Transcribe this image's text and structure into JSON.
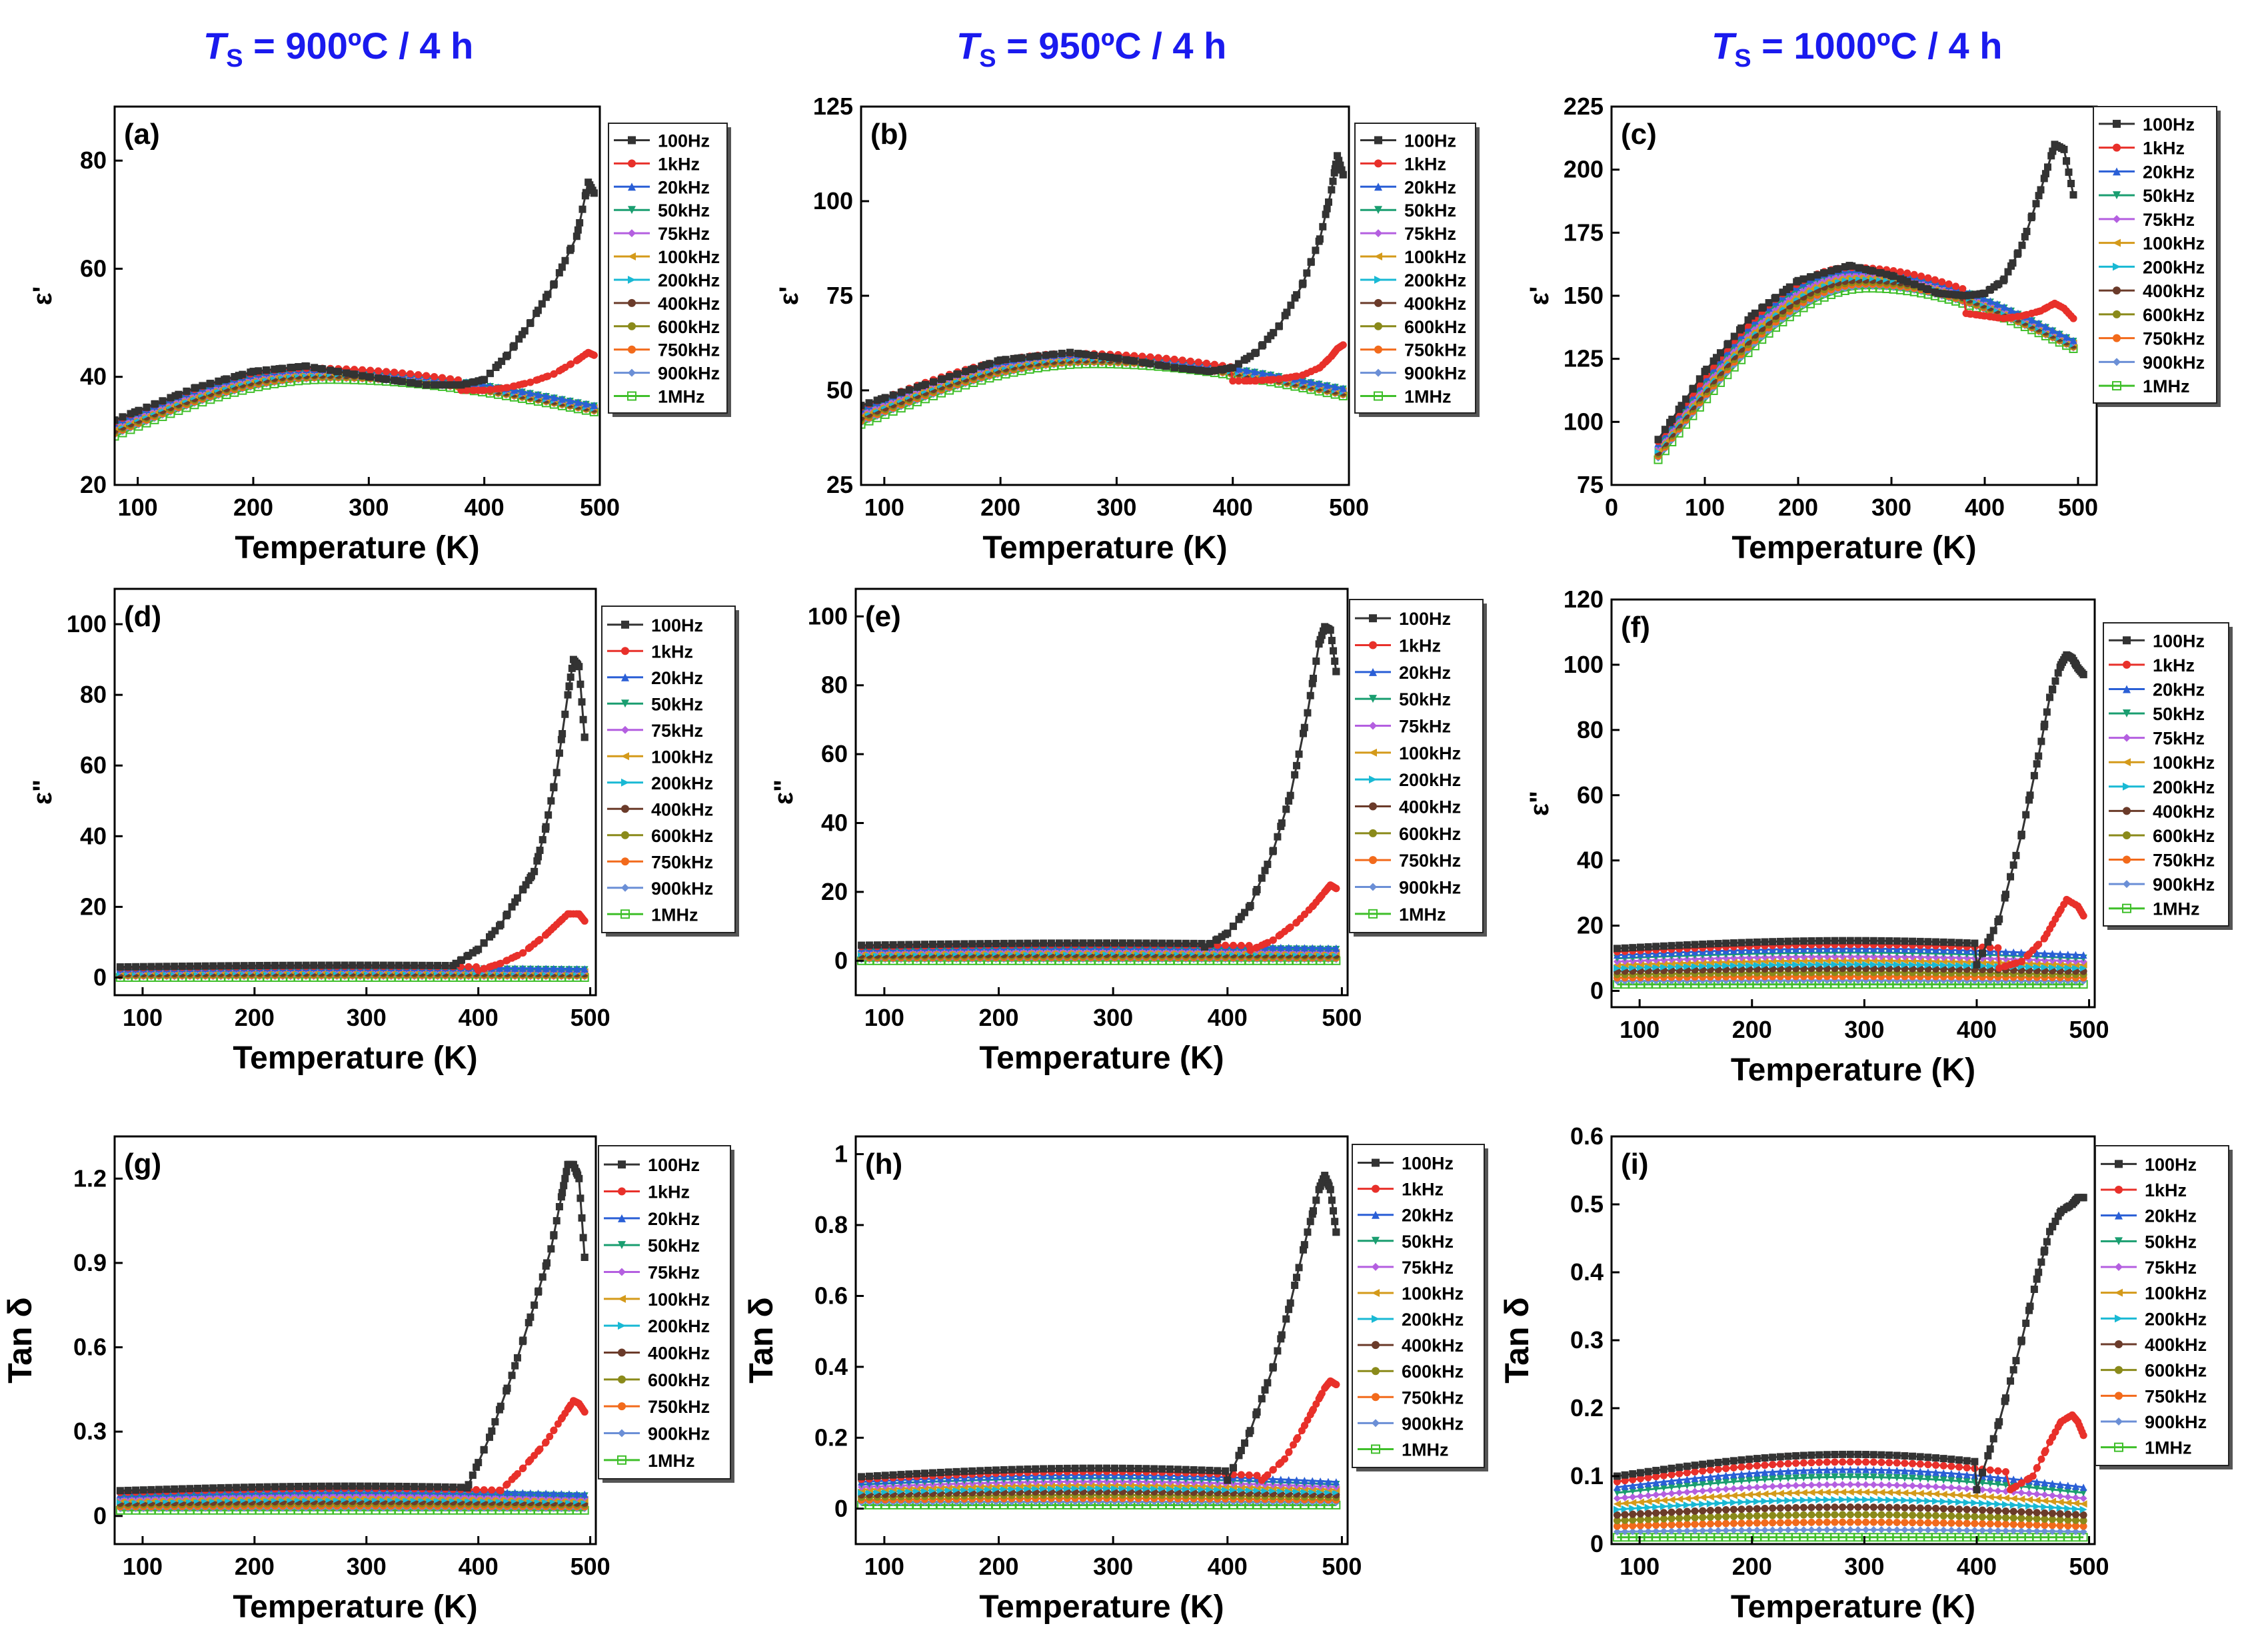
{
  "figure": {
    "columns": [
      {
        "prefix": "T",
        "sub": "S",
        "suffix": " = 900ºC / 4 h"
      },
      {
        "prefix": "T",
        "sub": "S",
        "suffix": " = 950ºC / 4 h"
      },
      {
        "prefix": "T",
        "sub": "S",
        "suffix": " = 1000ºC / 4 h"
      }
    ],
    "title_color": "#1a1aee"
  },
  "legend_labels": [
    "100Hz",
    "1kHz",
    "20kHz",
    "50kHz",
    "75kHz",
    "100kHz",
    "200kHz",
    "400kHz",
    "600kHz",
    "750kHz",
    "900kHz",
    "1MHz"
  ],
  "series_colors": [
    "#333333",
    "#e8302a",
    "#2a5fd6",
    "#1a9e70",
    "#b45fe0",
    "#d49a1a",
    "#19b9d4",
    "#6b3b2a",
    "#8a8a1a",
    "#f26a1b",
    "#6b8fd6",
    "#3fbf2a"
  ],
  "series_markers": [
    "square",
    "circle",
    "triangle",
    "tri-down",
    "diamond",
    "tri-left",
    "tri-right",
    "hexagon",
    "star",
    "pentagon",
    "diamond",
    "square-open"
  ],
  "chart_data": [
    {
      "id": "a",
      "label": "(a)",
      "type": "line",
      "xlabel": "Temperature (K)",
      "ylabel": "ε'",
      "xlim": [
        80,
        500
      ],
      "ylim": [
        20,
        90
      ],
      "xticks": [
        100,
        200,
        300,
        400,
        500
      ],
      "yticks": [
        20,
        40,
        60,
        80
      ],
      "peak": {
        "x": 245,
        "y_top": 41.8,
        "y_bot": 39.5
      },
      "xmin": 80,
      "xmax": 495,
      "start_top": 32,
      "start_bot": 29,
      "end_hi": 35,
      "end_lo": 33.5,
      "s0": {
        "x": [
          80,
          150,
          200,
          245,
          300,
          350,
          380,
          400,
          420,
          440,
          460,
          480,
          490,
          495
        ],
        "y": [
          32,
          38,
          41,
          42,
          40,
          38.5,
          38.5,
          39.5,
          44,
          50,
          57,
          66,
          76,
          74
        ]
      },
      "s1": {
        "x": [
          380,
          400,
          420,
          440,
          460,
          480,
          490,
          495
        ],
        "y": [
          37.5,
          37.5,
          38,
          39,
          40.5,
          43,
          44.5,
          44
        ]
      }
    },
    {
      "id": "b",
      "label": "(b)",
      "type": "line",
      "xlabel": "Temperature (K)",
      "ylabel": "ε'",
      "xlim": [
        80,
        500
      ],
      "ylim": [
        25,
        125
      ],
      "xticks": [
        100,
        200,
        300,
        400,
        500
      ],
      "yticks": [
        25,
        50,
        75,
        100,
        125
      ],
      "peak": {
        "x": 260,
        "y_top": 60,
        "y_bot": 57
      },
      "xmin": 80,
      "xmax": 495,
      "start_top": 46,
      "start_bot": 41,
      "end_hi": 51,
      "end_lo": 48.5,
      "s0": {
        "x": [
          80,
          150,
          200,
          260,
          300,
          350,
          380,
          400,
          420,
          440,
          460,
          475,
          485,
          490,
          495
        ],
        "y": [
          46,
          53,
          58,
          60,
          58.5,
          56,
          55,
          56,
          60,
          67,
          78,
          90,
          103,
          112,
          107
        ]
      },
      "s1": {
        "x": [
          400,
          420,
          440,
          460,
          475,
          485,
          490,
          495
        ],
        "y": [
          52.5,
          52.5,
          53,
          54,
          56,
          59,
          61,
          62
        ]
      }
    },
    {
      "id": "c",
      "label": "(c)",
      "type": "line",
      "xlabel": "Temperature (K)",
      "ylabel": "ε'",
      "xlim": [
        0,
        520
      ],
      "ylim": [
        75,
        225
      ],
      "xticks": [
        0,
        100,
        200,
        300,
        400,
        500
      ],
      "yticks": [
        75,
        100,
        125,
        150,
        175,
        200,
        225
      ],
      "peak": {
        "x": 255,
        "y_top": 162,
        "y_bot": 153
      },
      "xmin": 50,
      "xmax": 495,
      "start_top": 93,
      "start_bot": 85,
      "end_hi": 133,
      "end_lo": 129,
      "s0": {
        "x": [
          50,
          100,
          150,
          200,
          255,
          300,
          350,
          380,
          400,
          420,
          440,
          460,
          475,
          485,
          495
        ],
        "y": [
          93,
          120,
          142,
          156,
          162,
          158,
          151,
          150,
          151,
          156,
          170,
          192,
          210,
          208,
          190
        ]
      },
      "s1": {
        "x": [
          380,
          400,
          420,
          440,
          460,
          475,
          485,
          495
        ],
        "y": [
          143,
          142,
          141,
          142,
          144,
          147,
          145,
          141
        ]
      }
    },
    {
      "id": "d",
      "label": "(d)",
      "type": "line",
      "xlabel": "Temperature (K)",
      "ylabel": "ε\"",
      "xlim": [
        75,
        505
      ],
      "ylim": [
        -5,
        110
      ],
      "xticks": [
        100,
        200,
        300,
        400,
        500
      ],
      "yticks": [
        0,
        20,
        40,
        60,
        80,
        100
      ],
      "band": {
        "lo": 0,
        "hi": 3,
        "wave": 0.6
      },
      "xmin": 80,
      "xmax": 495,
      "s0": {
        "x": [
          380,
          400,
          420,
          440,
          450,
          460,
          470,
          480,
          485,
          490,
          495
        ],
        "y": [
          4,
          8,
          15,
          25,
          30,
          42,
          58,
          80,
          90,
          88,
          68
        ]
      },
      "s1": {
        "x": [
          400,
          420,
          440,
          460,
          470,
          480,
          490,
          495
        ],
        "y": [
          2,
          4,
          7,
          12,
          15,
          18,
          18,
          16
        ]
      }
    },
    {
      "id": "e",
      "label": "(e)",
      "type": "line",
      "xlabel": "Temperature (K)",
      "ylabel": "ε\"",
      "xlim": [
        75,
        505
      ],
      "ylim": [
        -10,
        108
      ],
      "xticks": [
        100,
        200,
        300,
        400,
        500
      ],
      "yticks": [
        0,
        20,
        40,
        60,
        80,
        100
      ],
      "band": {
        "lo": 0,
        "hi": 4.5,
        "wave": 0.8
      },
      "xmin": 80,
      "xmax": 495,
      "s0": {
        "x": [
          380,
          400,
          420,
          440,
          455,
          470,
          480,
          485,
          490,
          495
        ],
        "y": [
          4,
          8,
          16,
          32,
          48,
          72,
          92,
          97,
          96,
          84
        ]
      },
      "s1": {
        "x": [
          420,
          440,
          460,
          475,
          485,
          490,
          495
        ],
        "y": [
          3,
          6,
          11,
          16,
          20,
          22,
          21
        ]
      }
    },
    {
      "id": "f",
      "label": "(f)",
      "type": "line",
      "xlabel": "Temperature (K)",
      "ylabel": "ε\"",
      "xlim": [
        75,
        505
      ],
      "ylim": [
        -5,
        120
      ],
      "xticks": [
        100,
        200,
        300,
        400,
        500
      ],
      "yticks": [
        0,
        20,
        40,
        60,
        80,
        100,
        120
      ],
      "band": {
        "lo": 2,
        "hi": 13,
        "wave": 3
      },
      "xmin": 80,
      "xmax": 495,
      "s0": {
        "x": [
          400,
          420,
          440,
          455,
          465,
          475,
          480,
          485,
          490,
          495
        ],
        "y": [
          8,
          22,
          48,
          72,
          90,
          100,
          103,
          102,
          99,
          97
        ]
      },
      "s1": {
        "x": [
          420,
          440,
          460,
          470,
          480,
          490,
          495
        ],
        "y": [
          7,
          9,
          16,
          22,
          28,
          26,
          23
        ]
      }
    },
    {
      "id": "g",
      "label": "(g)",
      "type": "line",
      "xlabel": "Temperature (K)",
      "ylabel": "Tan δ",
      "xlim": [
        75,
        505
      ],
      "ylim": [
        -0.1,
        1.35
      ],
      "xticks": [
        100,
        200,
        300,
        400,
        500
      ],
      "yticks": [
        0.0,
        0.3,
        0.6,
        0.9,
        1.2
      ],
      "band": {
        "lo": 0.02,
        "hi": 0.09,
        "wave": 0.02
      },
      "xmin": 80,
      "xmax": 495,
      "s0": {
        "x": [
          390,
          410,
          430,
          450,
          465,
          475,
          480,
          485,
          490,
          495
        ],
        "y": [
          0.1,
          0.28,
          0.5,
          0.75,
          0.95,
          1.15,
          1.25,
          1.25,
          1.2,
          0.92
        ]
      },
      "s1": {
        "x": [
          420,
          440,
          460,
          475,
          485,
          490,
          495
        ],
        "y": [
          0.09,
          0.17,
          0.26,
          0.35,
          0.41,
          0.4,
          0.37
        ]
      }
    },
    {
      "id": "h",
      "label": "(h)",
      "type": "line",
      "xlabel": "Temperature (K)",
      "ylabel": "Tan δ",
      "xlim": [
        75,
        505
      ],
      "ylim": [
        -0.1,
        1.05
      ],
      "xticks": [
        100,
        200,
        300,
        400,
        500
      ],
      "yticks": [
        0.0,
        0.2,
        0.4,
        0.6,
        0.8,
        1.0
      ],
      "band": {
        "lo": 0.01,
        "hi": 0.09,
        "wave": 0.03
      },
      "xmin": 80,
      "xmax": 495,
      "s0": {
        "x": [
          400,
          420,
          440,
          455,
          470,
          480,
          485,
          490,
          495
        ],
        "y": [
          0.08,
          0.22,
          0.4,
          0.58,
          0.78,
          0.9,
          0.94,
          0.9,
          0.78
        ]
      },
      "s1": {
        "x": [
          430,
          450,
          465,
          475,
          485,
          490,
          495
        ],
        "y": [
          0.08,
          0.14,
          0.22,
          0.28,
          0.34,
          0.36,
          0.35
        ]
      }
    },
    {
      "id": "i",
      "label": "(i)",
      "type": "line",
      "xlabel": "Temperature (K)",
      "ylabel": "Tan δ",
      "xlim": [
        75,
        505
      ],
      "ylim": [
        0,
        0.6
      ],
      "xticks": [
        100,
        200,
        300,
        400,
        500
      ],
      "yticks": [
        0.0,
        0.1,
        0.2,
        0.3,
        0.4,
        0.5,
        0.6
      ],
      "band": {
        "lo": 0.01,
        "hi": 0.1,
        "wave": 0.04
      },
      "xmin": 80,
      "xmax": 495,
      "s0": {
        "x": [
          400,
          420,
          440,
          455,
          465,
          475,
          485,
          490,
          495
        ],
        "y": [
          0.08,
          0.18,
          0.3,
          0.4,
          0.46,
          0.49,
          0.5,
          0.51,
          0.51
        ]
      },
      "s1": {
        "x": [
          430,
          450,
          465,
          475,
          485,
          490,
          495
        ],
        "y": [
          0.08,
          0.1,
          0.15,
          0.18,
          0.19,
          0.18,
          0.16
        ]
      }
    }
  ]
}
